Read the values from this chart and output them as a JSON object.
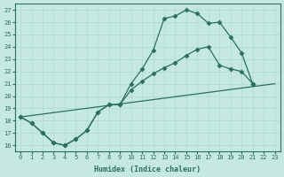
{
  "xlabel": "Humidex (Indice chaleur)",
  "xlim": [
    -0.5,
    23.5
  ],
  "ylim": [
    15.5,
    27.5
  ],
  "xticks": [
    0,
    1,
    2,
    3,
    4,
    5,
    6,
    7,
    8,
    9,
    10,
    11,
    12,
    13,
    14,
    15,
    16,
    17,
    18,
    19,
    20,
    21,
    22,
    23
  ],
  "yticks": [
    16,
    17,
    18,
    19,
    20,
    21,
    22,
    23,
    24,
    25,
    26,
    27
  ],
  "bg_color": "#c5e8e0",
  "line_color": "#2a7060",
  "grid_color": "#b0d8d0",
  "line1_x": [
    0,
    1,
    2,
    3,
    4,
    5,
    6,
    7,
    8,
    9,
    10,
    11,
    12,
    13,
    14,
    15,
    16,
    17,
    18,
    19,
    20,
    21
  ],
  "line1_y": [
    18.3,
    17.8,
    17.0,
    16.2,
    16.0,
    16.5,
    17.2,
    18.7,
    19.3,
    19.3,
    21.0,
    22.2,
    23.7,
    26.3,
    26.5,
    27.0,
    26.7,
    25.9,
    26.0,
    24.8,
    23.5,
    21.0
  ],
  "line2_x": [
    0,
    1,
    2,
    3,
    4,
    5,
    6,
    7,
    8,
    9,
    10,
    11,
    12,
    13,
    14,
    15,
    16,
    17,
    18,
    19,
    20,
    21
  ],
  "line2_y": [
    18.3,
    17.8,
    17.0,
    16.2,
    16.0,
    16.5,
    17.2,
    18.7,
    19.3,
    19.3,
    20.5,
    21.2,
    21.8,
    22.3,
    22.7,
    23.3,
    23.8,
    24.0,
    22.5,
    22.2,
    22.0,
    21.0
  ],
  "line3_x": [
    0,
    23
  ],
  "line3_y": [
    18.3,
    21.0
  ]
}
